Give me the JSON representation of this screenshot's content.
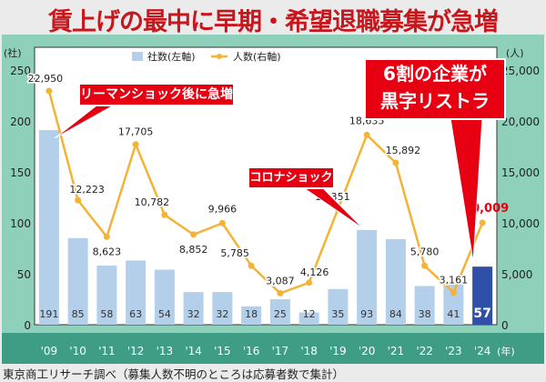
{
  "title": "賃上げの最中に早期・希望退職募集が急増",
  "source": "東京商工リサーチ調べ（募集人数不明のところは応募者数で集計）",
  "chart_data": {
    "type": "bar+line",
    "categories": [
      "'09",
      "'10",
      "'11",
      "'12",
      "'13",
      "'14",
      "'15",
      "'16",
      "'17",
      "'18",
      "'19",
      "'20",
      "'21",
      "'22",
      "'23",
      "'24"
    ],
    "x_unit": "(年)",
    "series": [
      {
        "name": "社数(左軸)",
        "type": "bar",
        "axis": "left",
        "values": [
          191,
          85,
          58,
          63,
          54,
          32,
          32,
          18,
          25,
          12,
          35,
          93,
          84,
          38,
          41,
          57
        ],
        "color": "#b3cfe9",
        "highlight_color": "#2f50a8"
      },
      {
        "name": "人数(右軸)",
        "type": "line",
        "axis": "right",
        "values": [
          22950,
          12223,
          8623,
          17705,
          10782,
          8852,
          9966,
          5785,
          3087,
          4126,
          11351,
          18635,
          15892,
          5780,
          3161,
          10009
        ],
        "labels": [
          "22,950",
          "12,223",
          "8,623",
          "17,705",
          "10,782",
          "8,852",
          "9,966",
          "5,785",
          "3,087",
          "4,126",
          "11,351",
          "18,635",
          "15,892",
          "5,780",
          "3,161",
          "10,009"
        ],
        "color": "#f5b335"
      }
    ],
    "left_axis": {
      "unit": "(社)",
      "ylim": [
        0,
        250
      ],
      "ticks": [
        "0",
        "50",
        "100",
        "150",
        "200",
        "250"
      ]
    },
    "right_axis": {
      "unit": "(人)",
      "ylim": [
        0,
        25000
      ],
      "ticks": [
        "0",
        "5,000",
        "10,000",
        "15,000",
        "20,000",
        "25,000"
      ]
    },
    "legend_placement": "top-center",
    "annotations": [
      "リーマンショック後に急増",
      "コロナショック",
      "6割の企業が",
      "黒字リストラ"
    ]
  }
}
